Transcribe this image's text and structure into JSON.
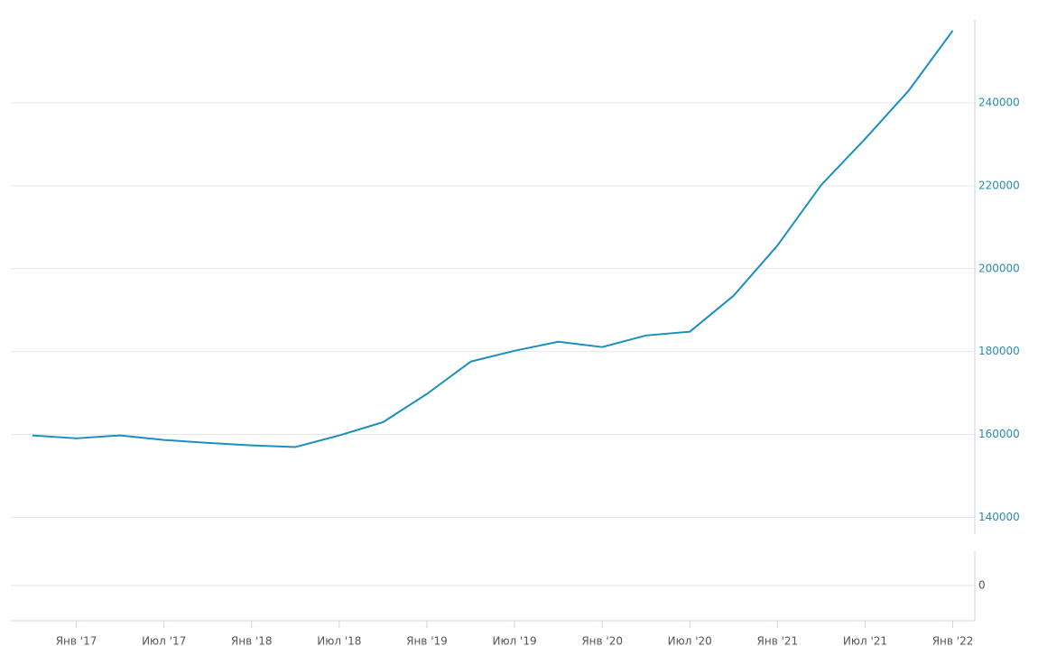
{
  "chart_data": {
    "type": "line",
    "categories": [
      null,
      "Янв '17",
      null,
      "Июл '17",
      null,
      "Янв '18",
      null,
      "Июл '18",
      null,
      "Янв '19",
      null,
      "Июл '19",
      null,
      "Янв '20",
      null,
      "Июл '20",
      null,
      "Янв '21",
      null,
      "Июл '21",
      null,
      "Янв '22"
    ],
    "series": [
      {
        "color": "#1a90bf",
        "values": [
          159800,
          159100,
          159800,
          158700,
          158000,
          157400,
          157000,
          159800,
          163000,
          169800,
          177600,
          180200,
          182400,
          181100,
          183900,
          184800,
          193500,
          205600,
          220200,
          231300,
          243000,
          257400
        ]
      }
    ],
    "ylim": [
      136000,
      260000
    ],
    "yticks": [
      140000,
      160000,
      180000,
      200000,
      220000,
      240000
    ],
    "y2lim": [
      -8000,
      8000
    ],
    "y2ticks": [
      0
    ],
    "grid": true
  }
}
